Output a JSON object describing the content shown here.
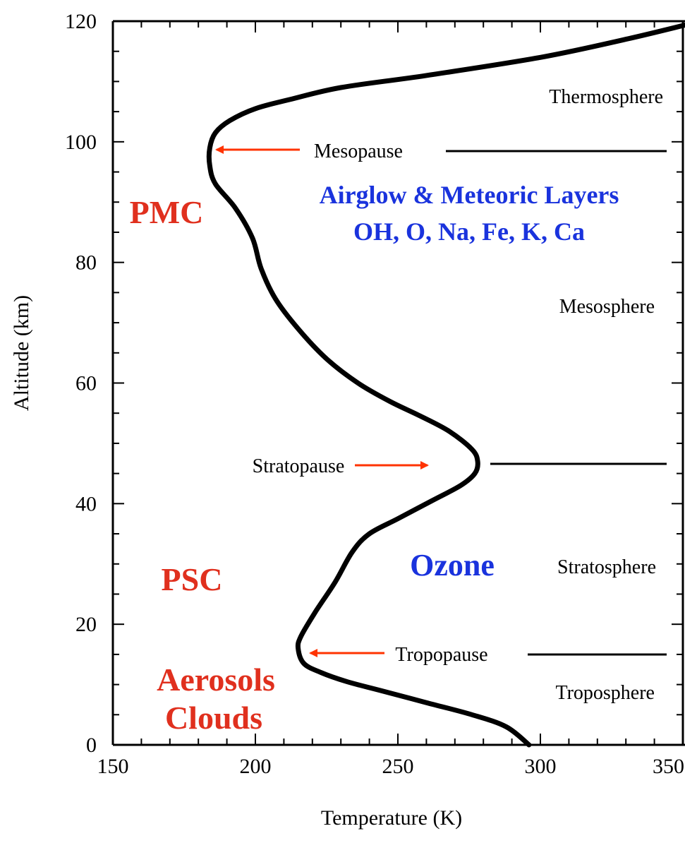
{
  "colors": {
    "profile": "#000000",
    "arrow": "#ff3300",
    "red_label": "#e0301e",
    "blue_label": "#1a33dd"
  },
  "chart_data": {
    "type": "line",
    "title": "",
    "xlabel": "Temperature (K)",
    "ylabel": "Altitude (km)",
    "xlim": [
      150,
      350
    ],
    "ylim": [
      0,
      120
    ],
    "xticks": [
      150,
      200,
      250,
      300,
      350
    ],
    "yticks": [
      0,
      20,
      40,
      60,
      80,
      100,
      120
    ],
    "x_tick_labels": [
      "150",
      "200",
      "250",
      "300",
      "350"
    ],
    "y_tick_labels": [
      "0",
      "20",
      "40",
      "60",
      "80",
      "100",
      "120"
    ],
    "grid": false,
    "series": [
      {
        "x": [
          296,
          288,
          276,
          260,
          244,
          232,
          223,
          217,
          215,
          216,
          221,
          228,
          234,
          240,
          250,
          262,
          272,
          277,
          278,
          276,
          268,
          258,
          247,
          236,
          225,
          215,
          207,
          202,
          199,
          193,
          186,
          184,
          184,
          186,
          191,
          200,
          212,
          230,
          260,
          300,
          330,
          352
        ],
        "y": [
          0,
          3,
          5,
          7,
          9,
          10.5,
          12,
          13.5,
          16,
          18,
          22,
          27,
          32,
          35,
          37.5,
          40.5,
          43,
          45,
          47,
          49,
          52,
          54.5,
          57,
          60,
          64,
          69,
          74,
          79,
          84,
          89,
          93,
          96,
          99,
          101.5,
          103.5,
          105.5,
          107,
          109,
          111,
          114,
          117,
          119.5
        ]
      }
    ],
    "annotations": {
      "thermosphere": "Thermosphere",
      "mesopause": "Mesopause",
      "airglow_line1": "Airglow & Meteoric Layers",
      "airglow_line2": "OH, O, Na, Fe, K, Ca",
      "pmc": "PMC",
      "mesosphere": "Mesosphere",
      "stratopause": "Stratopause",
      "psc": "PSC",
      "ozone": "Ozone",
      "stratosphere": "Stratosphere",
      "tropopause": "Tropopause",
      "aerosols": "Aerosols",
      "clouds": "Clouds",
      "troposphere": "Troposphere"
    }
  }
}
